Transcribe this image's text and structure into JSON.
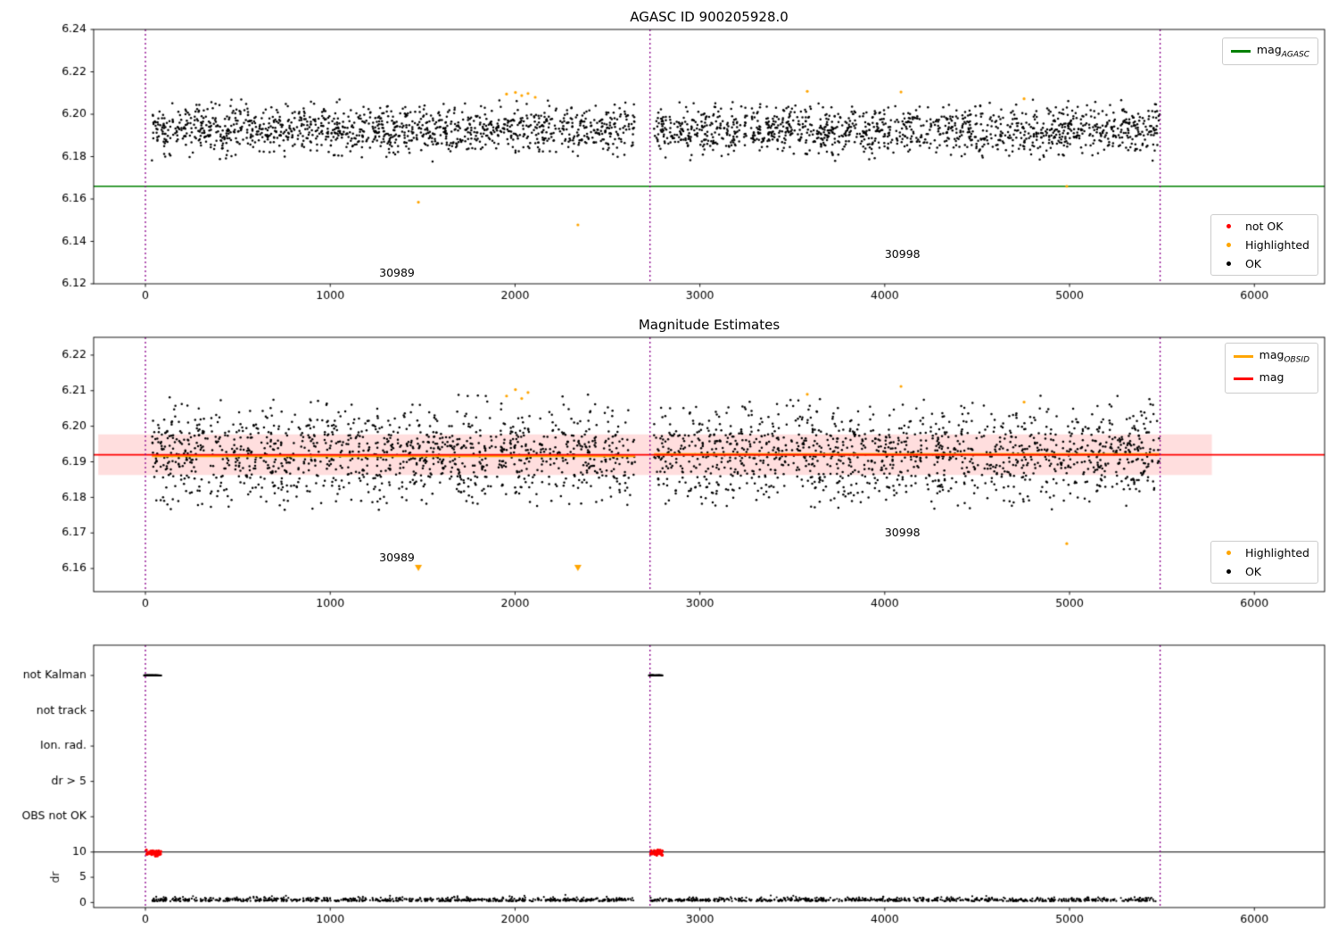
{
  "chart_data": [
    {
      "type": "scatter",
      "title": "AGASC ID 900205928.0",
      "xlim": [
        -280,
        6380
      ],
      "ylim": [
        6.12,
        6.24
      ],
      "xticks": [
        {
          "v": 0,
          "t": "0"
        },
        {
          "v": 1000,
          "t": "1000"
        },
        {
          "v": 2000,
          "t": "2000"
        },
        {
          "v": 3000,
          "t": "3000"
        },
        {
          "v": 4000,
          "t": "4000"
        },
        {
          "v": 5000,
          "t": "5000"
        },
        {
          "v": 6000,
          "t": "6000"
        }
      ],
      "yticks": [
        {
          "v": 6.12,
          "t": "6.12"
        },
        {
          "v": 6.14,
          "t": "6.14"
        },
        {
          "v": 6.16,
          "t": "6.16"
        },
        {
          "v": 6.18,
          "t": "6.18"
        },
        {
          "v": 6.2,
          "t": "6.20"
        },
        {
          "v": 6.22,
          "t": "6.22"
        },
        {
          "v": 6.24,
          "t": "6.24"
        }
      ],
      "vlines": {
        "x": [
          0,
          2730,
          5490
        ],
        "color": "#8b008b"
      },
      "hlines": [
        {
          "y": 6.166,
          "color": "#008000",
          "lw": 1.6
        }
      ],
      "ok_scatter": {
        "n": 2600,
        "seed": 42,
        "x_min": 35,
        "x_max": 5488,
        "gap": [
          2650,
          2752
        ],
        "y_mean": 6.1926,
        "y_std": 0.0056,
        "y_clip": [
          6.1775,
          6.207
        ],
        "color": "#000000",
        "r": 1.25
      },
      "highlighted": {
        "color": "#ffa500",
        "r": 1.6,
        "points": [
          [
            1477,
            6.1585
          ],
          [
            1954,
            6.2095
          ],
          [
            2002,
            6.2103
          ],
          [
            2036,
            6.2088
          ],
          [
            2070,
            6.2098
          ],
          [
            2109,
            6.208
          ],
          [
            2340,
            6.1478
          ],
          [
            3581,
            6.2108
          ],
          [
            4088,
            6.2105
          ],
          [
            4754,
            6.2073
          ],
          [
            4985,
            6.166
          ]
        ]
      },
      "annotations": [
        {
          "text": "30989",
          "x": 1265,
          "y": 6.1225
        },
        {
          "text": "30998",
          "x": 4000,
          "y": 6.1315
        }
      ],
      "legend_line": {
        "items": [
          {
            "base": "mag",
            "sub": "AGASC",
            "color": "#008000"
          }
        ]
      },
      "legend_markers": {
        "items": [
          {
            "label": "not OK",
            "color": "#ff0000"
          },
          {
            "label": "Highlighted",
            "color": "#ffa500"
          },
          {
            "label": "OK",
            "color": "#000000"
          }
        ]
      }
    },
    {
      "type": "scatter",
      "title": "Magnitude Estimates",
      "xlim": [
        -280,
        6380
      ],
      "ylim": [
        6.1535,
        6.225
      ],
      "xticks": [
        {
          "v": 0,
          "t": "0"
        },
        {
          "v": 1000,
          "t": "1000"
        },
        {
          "v": 2000,
          "t": "2000"
        },
        {
          "v": 3000,
          "t": "3000"
        },
        {
          "v": 4000,
          "t": "4000"
        },
        {
          "v": 5000,
          "t": "5000"
        },
        {
          "v": 6000,
          "t": "6000"
        }
      ],
      "yticks": [
        {
          "v": 6.16,
          "t": "6.16"
        },
        {
          "v": 6.17,
          "t": "6.17"
        },
        {
          "v": 6.18,
          "t": "6.18"
        },
        {
          "v": 6.19,
          "t": "6.19"
        },
        {
          "v": 6.2,
          "t": "6.20"
        },
        {
          "v": 6.21,
          "t": "6.21"
        },
        {
          "v": 6.22,
          "t": "6.22"
        }
      ],
      "vlines": {
        "x": [
          0,
          2730,
          5490
        ],
        "color": "#8b008b"
      },
      "band": {
        "x0": -255,
        "x1": 5770,
        "y0": 6.1863,
        "y1": 6.1977,
        "color": "rgba(255,0,0,0.13)"
      },
      "ok_scatter": {
        "n": 2600,
        "seed": 17,
        "x_min": 35,
        "x_max": 5488,
        "gap": [
          2650,
          2752
        ],
        "y_mean": 6.1918,
        "y_std": 0.0068,
        "y_clip": [
          6.1765,
          6.2095
        ],
        "color": "#000000",
        "r": 1.25
      },
      "obsid_color": "#ffa500",
      "obsid_lw": 3,
      "obsid_segments": [
        {
          "x0": 35,
          "x1": 2650,
          "y": 6.1917
        },
        {
          "x0": 2752,
          "x1": 5488,
          "y": 6.1921
        }
      ],
      "hlines": [
        {
          "y": 6.192,
          "color": "#ff0000",
          "lw": 1.7
        }
      ],
      "highlighted": {
        "color": "#ffa500",
        "r": 1.6,
        "points": [
          [
            1954,
            6.2085
          ],
          [
            2002,
            6.2103
          ],
          [
            2036,
            6.2078
          ],
          [
            2070,
            6.2095
          ],
          [
            3581,
            6.209
          ],
          [
            4088,
            6.2112
          ],
          [
            4754,
            6.2068
          ],
          [
            4985,
            6.167
          ]
        ]
      },
      "triangles": {
        "color": "#ffa500",
        "size": 4,
        "points": [
          [
            1477,
            6.1602
          ],
          [
            2340,
            6.1602
          ]
        ]
      },
      "annotations": [
        {
          "text": "30989",
          "x": 1265,
          "y": 6.1615
        },
        {
          "text": "30998",
          "x": 4000,
          "y": 6.1685
        }
      ],
      "legend_line": {
        "items": [
          {
            "base": "mag",
            "sub": "OBSID",
            "color": "#ffa500"
          },
          {
            "base": "mag",
            "sub": "",
            "color": "#ff0000"
          }
        ]
      },
      "legend_markers": {
        "items": [
          {
            "label": "Highlighted",
            "color": "#ffa500"
          },
          {
            "label": "OK",
            "color": "#000000"
          }
        ]
      }
    },
    {
      "type": "flags",
      "title": "",
      "xlim": [
        -280,
        6380
      ],
      "ylim": [
        -1,
        51
      ],
      "xticks": [
        {
          "v": 0,
          "t": "0"
        },
        {
          "v": 1000,
          "t": "1000"
        },
        {
          "v": 2000,
          "t": "2000"
        },
        {
          "v": 3000,
          "t": "3000"
        },
        {
          "v": 4000,
          "t": "4000"
        },
        {
          "v": 5000,
          "t": "5000"
        },
        {
          "v": 6000,
          "t": "6000"
        }
      ],
      "flag_rows": [
        {
          "label": "not Kalman",
          "level": 45
        },
        {
          "label": "not track",
          "level": 38
        },
        {
          "label": "Ion. rad.",
          "level": 31
        },
        {
          "label": "dr > 5",
          "level": 24
        },
        {
          "label": "OBS not OK",
          "level": 17
        }
      ],
      "dr_ticks": [
        {
          "v": 10,
          "t": "10"
        },
        {
          "v": 5,
          "t": "5"
        },
        {
          "v": 0,
          "t": "0"
        }
      ],
      "ylabel": "dr",
      "vlines": {
        "x": [
          0,
          2730,
          5490
        ],
        "color": "#8b008b"
      },
      "hlines": [
        {
          "y": 10,
          "color": "#000000",
          "lw": 1.1
        }
      ],
      "dr_scatter": {
        "n": 1500,
        "seed": 7,
        "x_min": 35,
        "x_max": 5488,
        "gap": [
          2640,
          2726
        ],
        "y_base": 0.25,
        "y_spread": 0.35,
        "y_clip": [
          0.1,
          1.8
        ],
        "color": "#000000",
        "r": 1.1
      },
      "bad_dr": {
        "color": "#ff0000",
        "r": 1.5,
        "seed": 11,
        "y_center": 9.85,
        "jitter": 0.3,
        "y_clip": [
          9.2,
          10.45
        ],
        "clusters": [
          {
            "x0": 0,
            "x1": 86,
            "n": 50
          },
          {
            "x0": 2729,
            "x1": 2798,
            "n": 45
          }
        ]
      },
      "flag_marks": {
        "color": "#000000",
        "level": 45,
        "seed": 13,
        "clusters": [
          {
            "x0": 0,
            "x1": 85,
            "n": 40
          },
          {
            "x0": 2729,
            "x1": 2790,
            "n": 35
          }
        ]
      }
    }
  ]
}
